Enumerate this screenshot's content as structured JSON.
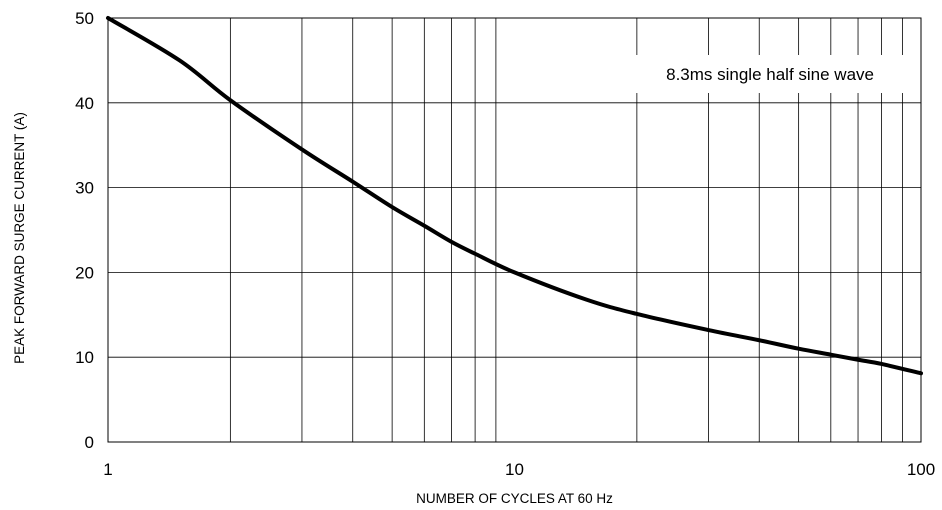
{
  "chart_data": {
    "type": "line",
    "title": "",
    "xlabel": "NUMBER OF CYCLES AT 60 Hz",
    "ylabel": "PEAK FORWARD SURGE CURRENT (A)",
    "x_scale": "log",
    "xlim": [
      1,
      100
    ],
    "ylim": [
      0,
      50
    ],
    "x_ticks": [
      "1",
      "10",
      "100"
    ],
    "y_ticks": [
      "0",
      "10",
      "20",
      "30",
      "40",
      "50"
    ],
    "grid": true,
    "annotation": "8.3ms single half sine wave",
    "series": [
      {
        "x": [
          1,
          1.5,
          2,
          3,
          4,
          5,
          6,
          7,
          8,
          10,
          15,
          20,
          30,
          40,
          50,
          60,
          70,
          80,
          100
        ],
        "y": [
          50,
          45,
          40.3,
          34.5,
          30.7,
          27.7,
          25.5,
          23.6,
          22.2,
          20.0,
          16.8,
          15.1,
          13.2,
          12.0,
          11.0,
          10.3,
          9.7,
          9.2,
          8.1
        ]
      }
    ]
  }
}
